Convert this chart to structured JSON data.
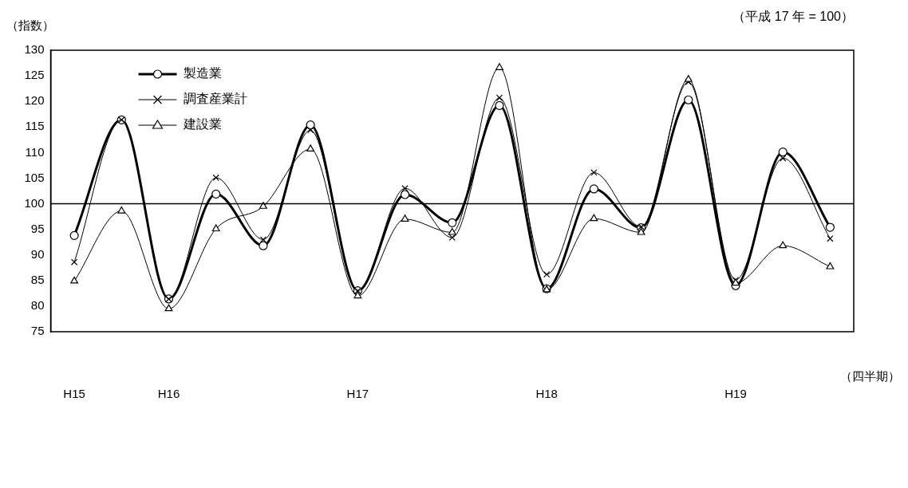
{
  "chart_data": {
    "type": "line",
    "ylabel": "（指数）",
    "xlabel": "（四半期）",
    "annotations": [
      "（平成 17 年 = 100）"
    ],
    "categories": [
      "H15",
      null,
      "H16",
      null,
      null,
      null,
      "H17",
      null,
      null,
      null,
      "H18",
      null,
      null,
      null,
      "H19",
      null,
      null
    ],
    "series": [
      {
        "name": "製造業",
        "color": "#000000",
        "marker": "circle",
        "values": [
          93.8,
          116.4,
          81.4,
          101.9,
          91.8,
          115.4,
          83.0,
          101.8,
          96.3,
          119.2,
          83.4,
          102.9,
          95.3,
          120.3,
          84.0,
          110.1,
          95.4
        ]
      },
      {
        "name": "調査産業計",
        "color": "#000000",
        "marker": "cross",
        "values": [
          88.6,
          116.4,
          81.4,
          105.1,
          93.0,
          114.4,
          83.0,
          103.0,
          93.4,
          120.7,
          86.2,
          106.1,
          95.5,
          123.8,
          85.1,
          108.9,
          93.2
        ]
      },
      {
        "name": "建設業",
        "color": "#000000",
        "marker": "triangle",
        "values": [
          84.9,
          98.6,
          79.5,
          95.1,
          99.5,
          110.7,
          82.0,
          97.0,
          94.4,
          126.6,
          83.2,
          97.1,
          94.4,
          124.3,
          84.5,
          91.8,
          87.7
        ]
      }
    ],
    "ylim": [
      75,
      130
    ],
    "yticks": [
      75,
      80,
      85,
      90,
      95,
      100,
      105,
      110,
      115,
      120,
      125,
      130
    ],
    "ref_lines": [
      {
        "axis": "y",
        "value": 100,
        "color": "#000000"
      }
    ],
    "legend": "top left",
    "grid": false
  }
}
